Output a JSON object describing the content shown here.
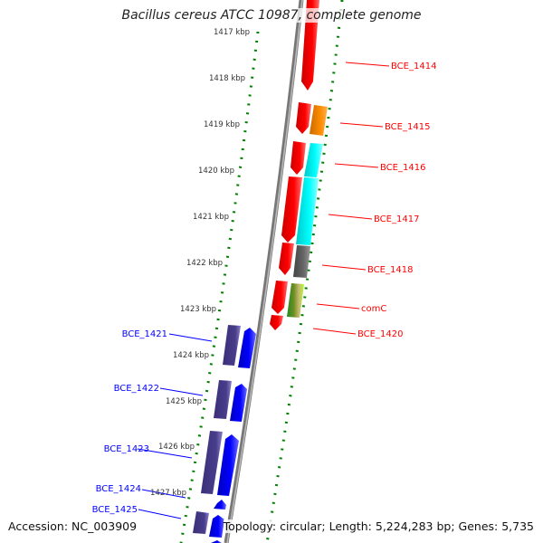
{
  "title": "Bacillus cereus ATCC 10987, complete genome",
  "accession": "Accession: NC_003909",
  "topology": "Topology: circular; Length: 5,224,283 bp; Genes: 5,735",
  "ticks": [
    "1417 kbp",
    "1418 kbp",
    "1419 kbp",
    "1420 kbp",
    "1421 kbp",
    "1422 kbp",
    "1423 kbp",
    "1424 kbp",
    "1425 kbp",
    "1426 kbp",
    "1427 kbp"
  ],
  "forward_genes": [
    "BCE_1414",
    "BCE_1415",
    "BCE_1416",
    "BCE_1417",
    "BCE_1418",
    "comC",
    "BCE_1420"
  ],
  "reverse_genes": [
    "BCE_1421",
    "BCE_1422",
    "BCE_1423",
    "BCE_1424",
    "BCE_1425"
  ],
  "colors": {
    "forward": "#ff0000",
    "reverse": "#0000ff",
    "backbone": "#888888",
    "ruler": "#008000",
    "orange": "#ff8c00",
    "cyan": "#00ffff",
    "gray": "#666666",
    "green": "#66cc33",
    "purple": "#483d8b"
  }
}
